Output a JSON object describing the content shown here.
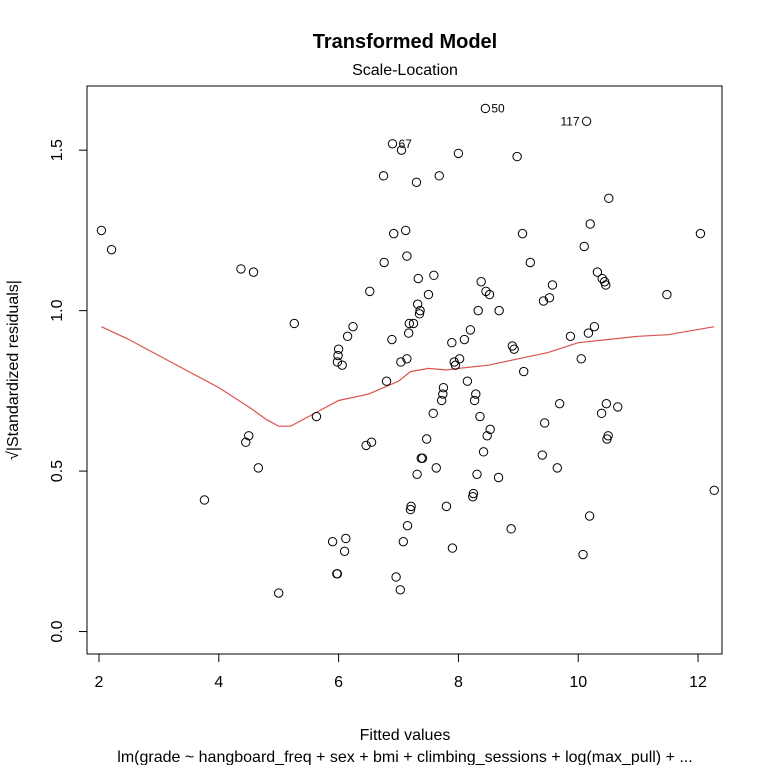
{
  "chart_data": {
    "type": "scatter",
    "title": "Transformed Model",
    "subtitle": "Scale-Location",
    "xlabel": "Fitted values",
    "ylabel": "√|Standardized residuals|",
    "caption": "lm(grade ~ hangboard_freq + sex + bmi + climbing_sessions + log(max_pull) + ...",
    "xlim": [
      1.8,
      12.4
    ],
    "ylim": [
      -0.07,
      1.7
    ],
    "x_ticks": [
      2,
      4,
      6,
      8,
      10,
      12
    ],
    "y_ticks": [
      0.0,
      0.5,
      1.0,
      1.5
    ],
    "x_tick_labels": [
      "2",
      "4",
      "6",
      "8",
      "10",
      "12"
    ],
    "y_tick_labels": [
      "0.0",
      "0.5",
      "1.0",
      "1.5"
    ],
    "grid": false,
    "point_color": "#000000",
    "smoother_color": "#d9534f",
    "points": [
      [
        2.04,
        1.25
      ],
      [
        2.21,
        1.19
      ],
      [
        3.76,
        0.41
      ],
      [
        4.37,
        1.13
      ],
      [
        4.45,
        0.59
      ],
      [
        4.5,
        0.61
      ],
      [
        4.58,
        1.12
      ],
      [
        4.66,
        0.51
      ],
      [
        5.0,
        0.12
      ],
      [
        5.26,
        0.96
      ],
      [
        5.63,
        0.67
      ],
      [
        5.9,
        0.28
      ],
      [
        5.97,
        0.18
      ],
      [
        5.98,
        0.18
      ],
      [
        5.98,
        0.84
      ],
      [
        5.99,
        0.86
      ],
      [
        6.0,
        0.88
      ],
      [
        6.06,
        0.83
      ],
      [
        6.1,
        0.25
      ],
      [
        6.12,
        0.29
      ],
      [
        6.15,
        0.92
      ],
      [
        6.24,
        0.95
      ],
      [
        6.46,
        0.58
      ],
      [
        6.52,
        1.06
      ],
      [
        6.55,
        0.59
      ],
      [
        6.75,
        1.42
      ],
      [
        6.76,
        1.15
      ],
      [
        6.8,
        0.78
      ],
      [
        6.89,
        0.91
      ],
      [
        6.9,
        1.52
      ],
      [
        6.92,
        1.24
      ],
      [
        6.96,
        0.17
      ],
      [
        7.03,
        0.13
      ],
      [
        7.04,
        0.84
      ],
      [
        7.05,
        1.5
      ],
      [
        7.08,
        0.28
      ],
      [
        7.12,
        1.25
      ],
      [
        7.14,
        1.17
      ],
      [
        7.14,
        0.85
      ],
      [
        7.15,
        0.33
      ],
      [
        7.17,
        0.93
      ],
      [
        7.18,
        0.96
      ],
      [
        7.2,
        0.38
      ],
      [
        7.21,
        0.39
      ],
      [
        7.25,
        0.96
      ],
      [
        7.3,
        1.4
      ],
      [
        7.31,
        0.49
      ],
      [
        7.32,
        1.02
      ],
      [
        7.33,
        1.1
      ],
      [
        7.35,
        0.99
      ],
      [
        7.36,
        1.0
      ],
      [
        7.38,
        0.54
      ],
      [
        7.4,
        0.54
      ],
      [
        7.47,
        0.6
      ],
      [
        7.5,
        1.05
      ],
      [
        7.58,
        0.68
      ],
      [
        7.59,
        1.11
      ],
      [
        7.63,
        0.51
      ],
      [
        7.68,
        1.42
      ],
      [
        7.72,
        0.72
      ],
      [
        7.74,
        0.74
      ],
      [
        7.75,
        0.76
      ],
      [
        7.8,
        0.39
      ],
      [
        7.89,
        0.9
      ],
      [
        7.9,
        0.26
      ],
      [
        7.93,
        0.84
      ],
      [
        7.95,
        0.83
      ],
      [
        8.0,
        1.49
      ],
      [
        8.02,
        0.85
      ],
      [
        8.1,
        0.91
      ],
      [
        8.15,
        0.78
      ],
      [
        8.2,
        0.94
      ],
      [
        8.24,
        0.42
      ],
      [
        8.25,
        0.43
      ],
      [
        8.27,
        0.72
      ],
      [
        8.29,
        0.74
      ],
      [
        8.31,
        0.49
      ],
      [
        8.33,
        1.0
      ],
      [
        8.36,
        0.67
      ],
      [
        8.38,
        1.09
      ],
      [
        8.42,
        0.56
      ],
      [
        8.45,
        1.63
      ],
      [
        8.46,
        1.06
      ],
      [
        8.48,
        0.61
      ],
      [
        8.52,
        1.05
      ],
      [
        8.53,
        0.63
      ],
      [
        8.67,
        0.48
      ],
      [
        8.68,
        1.0
      ],
      [
        8.88,
        0.32
      ],
      [
        8.9,
        0.89
      ],
      [
        8.93,
        0.88
      ],
      [
        8.98,
        1.48
      ],
      [
        9.07,
        1.24
      ],
      [
        9.09,
        0.81
      ],
      [
        9.2,
        1.15
      ],
      [
        9.4,
        0.55
      ],
      [
        9.42,
        1.03
      ],
      [
        9.44,
        0.65
      ],
      [
        9.52,
        1.04
      ],
      [
        9.57,
        1.08
      ],
      [
        9.65,
        0.51
      ],
      [
        9.69,
        0.71
      ],
      [
        9.87,
        0.92
      ],
      [
        10.05,
        0.85
      ],
      [
        10.08,
        0.24
      ],
      [
        10.1,
        1.2
      ],
      [
        10.14,
        1.59
      ],
      [
        10.17,
        0.93
      ],
      [
        10.19,
        0.36
      ],
      [
        10.2,
        1.27
      ],
      [
        10.27,
        0.95
      ],
      [
        10.32,
        1.12
      ],
      [
        10.39,
        0.68
      ],
      [
        10.4,
        1.1
      ],
      [
        10.44,
        1.09
      ],
      [
        10.46,
        1.08
      ],
      [
        10.47,
        0.71
      ],
      [
        10.48,
        0.6
      ],
      [
        10.5,
        0.61
      ],
      [
        10.51,
        1.35
      ],
      [
        10.66,
        0.7
      ],
      [
        11.48,
        1.05
      ],
      [
        12.04,
        1.24
      ],
      [
        12.27,
        0.44
      ]
    ],
    "labeled_points": [
      {
        "label": "50",
        "x": 8.45,
        "y": 1.63,
        "side": "right"
      },
      {
        "label": "117",
        "x": 10.14,
        "y": 1.59,
        "side": "left"
      },
      {
        "label": "67",
        "x": 6.9,
        "y": 1.52,
        "side": "right"
      }
    ],
    "smoother": [
      [
        2.04,
        0.95
      ],
      [
        2.5,
        0.91
      ],
      [
        3.0,
        0.86
      ],
      [
        3.5,
        0.81
      ],
      [
        4.0,
        0.76
      ],
      [
        4.5,
        0.7
      ],
      [
        4.8,
        0.66
      ],
      [
        5.0,
        0.64
      ],
      [
        5.2,
        0.64
      ],
      [
        5.5,
        0.67
      ],
      [
        6.0,
        0.72
      ],
      [
        6.5,
        0.74
      ],
      [
        7.0,
        0.78
      ],
      [
        7.2,
        0.81
      ],
      [
        7.5,
        0.82
      ],
      [
        7.8,
        0.815
      ],
      [
        8.0,
        0.82
      ],
      [
        8.5,
        0.83
      ],
      [
        9.0,
        0.85
      ],
      [
        9.5,
        0.87
      ],
      [
        10.0,
        0.9
      ],
      [
        10.5,
        0.91
      ],
      [
        11.0,
        0.92
      ],
      [
        11.5,
        0.925
      ],
      [
        12.27,
        0.95
      ]
    ]
  }
}
